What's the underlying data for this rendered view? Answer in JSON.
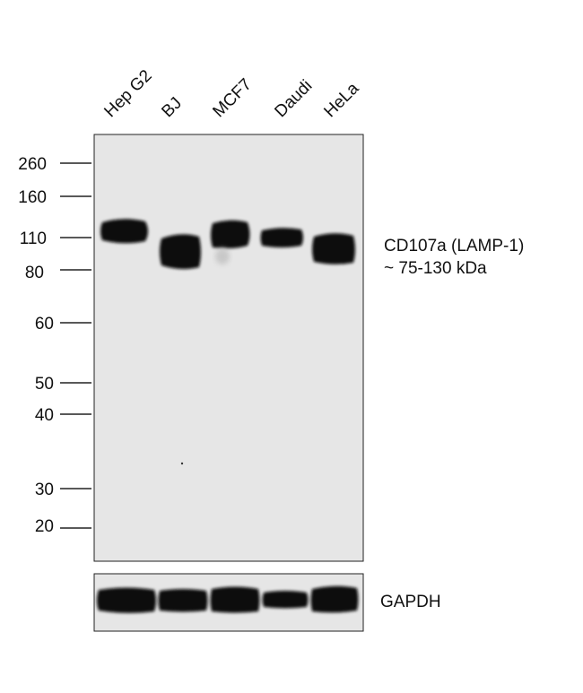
{
  "lanes": [
    "Hep G2",
    "BJ",
    "MCF7",
    "Daudi",
    "HeLa"
  ],
  "mw_markers": [
    "260",
    "160",
    "110",
    "80",
    "60",
    "50",
    "40",
    "30",
    "20"
  ],
  "target": {
    "name": "CD107a (LAMP-1)",
    "size": "~ 75-130 kDa"
  },
  "loading_control": "GAPDH",
  "colors": {
    "membrane": "#e6e6e6",
    "band": "#0a0a0a",
    "border": "#222222"
  }
}
